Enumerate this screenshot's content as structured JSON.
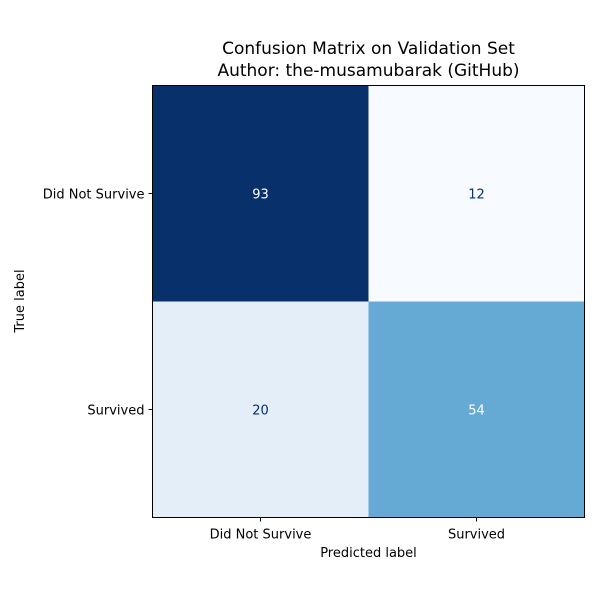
{
  "chart_data": {
    "type": "heatmap",
    "title": "Confusion Matrix on Validation Set",
    "subtitle": "Author: the-musamubarak (GitHub)",
    "xlabel": "Predicted label",
    "ylabel": "True label",
    "x_categories": [
      "Did Not Survive",
      "Survived"
    ],
    "y_categories": [
      "Did Not Survive",
      "Survived"
    ],
    "values": [
      [
        93,
        12
      ],
      [
        20,
        54
      ]
    ],
    "colormap": "Blues",
    "color_low": "#f7fbff",
    "color_high": "#08306b",
    "text_dark": "#08306b",
    "text_light": "#ffffff",
    "grid": false
  }
}
